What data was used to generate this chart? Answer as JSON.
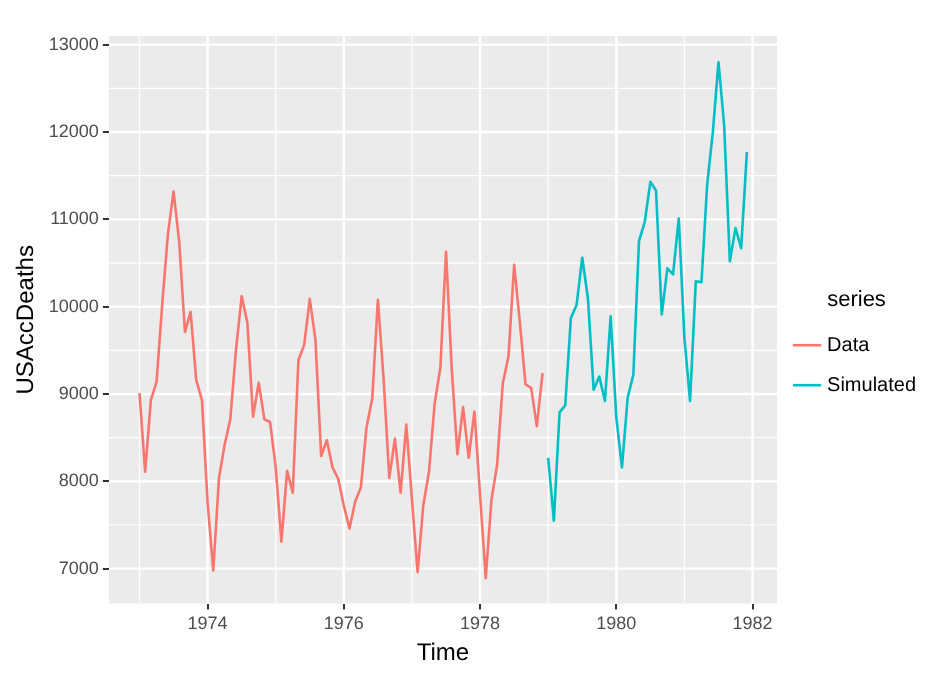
{
  "chart_data": {
    "type": "line",
    "xlabel": "Time",
    "ylabel": "USAccDeaths",
    "legend_title": "series",
    "legend": "right",
    "grid": true,
    "xlim": [
      1972.55,
      1982.36
    ],
    "xticks": [
      1974,
      1976,
      1978,
      1980,
      1982
    ],
    "ylim": [
      6600,
      13100
    ],
    "yticks": [
      7000,
      8000,
      9000,
      10000,
      11000,
      12000,
      13000
    ],
    "series": [
      {
        "name": "Data",
        "color": "#f8766d",
        "x": [
          1973,
          1973.083,
          1973.167,
          1973.25,
          1973.333,
          1973.417,
          1973.5,
          1973.583,
          1973.667,
          1973.75,
          1973.833,
          1973.917,
          1974,
          1974.083,
          1974.167,
          1974.25,
          1974.333,
          1974.417,
          1974.5,
          1974.583,
          1974.667,
          1974.75,
          1974.833,
          1974.917,
          1975,
          1975.083,
          1975.167,
          1975.25,
          1975.333,
          1975.417,
          1975.5,
          1975.583,
          1975.667,
          1975.75,
          1975.833,
          1975.917,
          1976,
          1976.083,
          1976.167,
          1976.25,
          1976.333,
          1976.417,
          1976.5,
          1976.583,
          1976.667,
          1976.75,
          1976.833,
          1976.917,
          1977,
          1977.083,
          1977.167,
          1977.25,
          1977.333,
          1977.417,
          1977.5,
          1977.583,
          1977.667,
          1977.75,
          1977.833,
          1977.917,
          1978,
          1978.083,
          1978.167,
          1978.25,
          1978.333,
          1978.417,
          1978.5,
          1978.583,
          1978.667,
          1978.75,
          1978.833,
          1978.917
        ],
        "values": [
          9010,
          8110,
          8930,
          9140,
          10020,
          10830,
          11320,
          10740,
          9710,
          9940,
          9160,
          8930,
          7750,
          6980,
          8040,
          8420,
          8710,
          9510,
          10120,
          9820,
          8740,
          9130,
          8710,
          8680,
          8160,
          7310,
          8120,
          7870,
          9390,
          9560,
          10090,
          9620,
          8290,
          8470,
          8160,
          8030,
          7720,
          7460,
          7770,
          7930,
          8620,
          8950,
          10080,
          9180,
          8040,
          8490,
          7870,
          8650,
          7790,
          6960,
          7730,
          8110,
          8890,
          9300,
          10630,
          9300,
          8310,
          8850,
          8270,
          8800,
          7840,
          6890,
          7790,
          8190,
          9120,
          9430,
          10480,
          9830,
          9110,
          9070,
          8630,
          9240
        ]
      },
      {
        "name": "Simulated",
        "color": "#00bfc4",
        "x": [
          1979,
          1979.083,
          1979.167,
          1979.25,
          1979.333,
          1979.417,
          1979.5,
          1979.583,
          1979.667,
          1979.75,
          1979.833,
          1979.917,
          1980,
          1980.083,
          1980.167,
          1980.25,
          1980.333,
          1980.417,
          1980.5,
          1980.583,
          1980.667,
          1980.75,
          1980.833,
          1980.917,
          1981,
          1981.083,
          1981.167,
          1981.25,
          1981.333,
          1981.417,
          1981.5,
          1981.583,
          1981.667,
          1981.75,
          1981.833,
          1981.917
        ],
        "values": [
          8270,
          7550,
          8790,
          8870,
          9870,
          10020,
          10560,
          10100,
          9050,
          9200,
          8920,
          9890,
          8730,
          8160,
          8960,
          9220,
          10750,
          10970,
          11430,
          11330,
          9910,
          10440,
          10370,
          11010,
          9640,
          8920,
          10290,
          10280,
          11390,
          12000,
          12800,
          12080,
          10520,
          10900,
          10670,
          11770
        ]
      }
    ]
  }
}
